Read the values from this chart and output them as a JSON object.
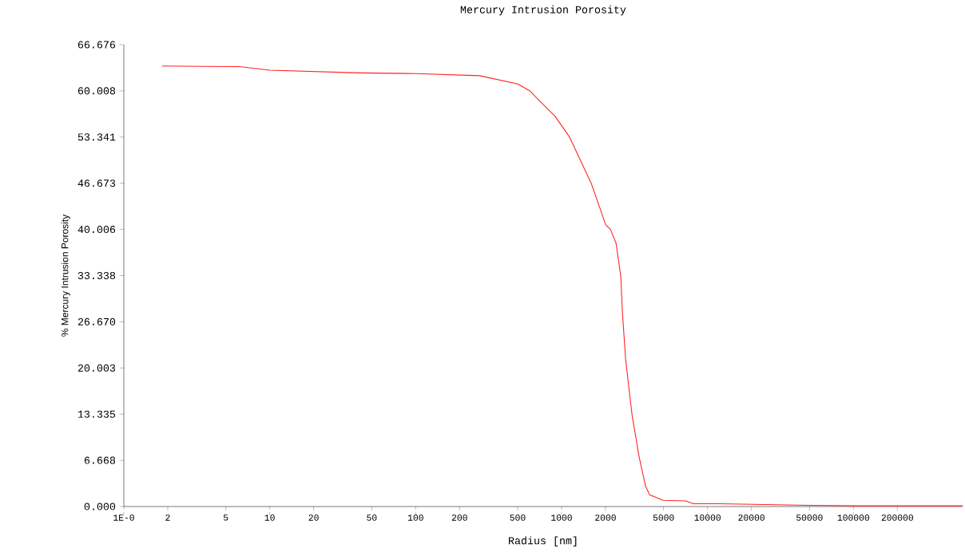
{
  "chart_data": {
    "type": "line",
    "title": "Mercury Intrusion Porosity",
    "xlabel": "Radius  [nm]",
    "ylabel": "% Mercury Intrusion Porosity",
    "log": "x",
    "xlim": [
      1,
      560000
    ],
    "ylim": [
      0,
      66.676
    ],
    "xticks": [
      {
        "value": 1,
        "label": "1E-0"
      },
      2,
      5,
      10,
      20,
      50,
      100,
      200,
      500,
      1000,
      2000,
      5000,
      10000,
      20000,
      50000,
      100000,
      200000
    ],
    "yticks": [
      {
        "value": 0,
        "label": "0.000"
      },
      {
        "value": 6.668,
        "label": "6.668"
      },
      {
        "value": 13.335,
        "label": "13.335"
      },
      {
        "value": 20.003,
        "label": "20.003"
      },
      {
        "value": 26.67,
        "label": "26.670"
      },
      {
        "value": 33.338,
        "label": "33.338"
      },
      {
        "value": 40.006,
        "label": "40.006"
      },
      {
        "value": 46.673,
        "label": "46.673"
      },
      {
        "value": 53.341,
        "label": "53.341"
      },
      {
        "value": 60.008,
        "label": "60.008"
      },
      {
        "value": 66.676,
        "label": "66.676"
      }
    ],
    "grid": false,
    "x": [
      1.83,
      6.2,
      10,
      41,
      100,
      274,
      501,
      606,
      704,
      906,
      1137,
      1600,
      2005,
      2163,
      2362,
      2546,
      2612,
      2748,
      3041,
      3405,
      3767,
      4011,
      4977,
      7080,
      8030,
      12020,
      42440,
      102600,
      560000
    ],
    "series": [
      {
        "color": "#ff2020",
        "values": [
          63.6,
          63.5,
          63.0,
          62.6,
          62.5,
          62.2,
          61.0,
          60.0,
          58.6,
          56.3,
          53.3,
          46.6,
          40.7,
          40.0,
          38.0,
          33.2,
          28.0,
          21.2,
          13.2,
          7.1,
          2.9,
          1.7,
          0.9,
          0.8,
          0.4,
          0.4,
          0.2,
          0.1,
          0.1
        ]
      }
    ]
  }
}
